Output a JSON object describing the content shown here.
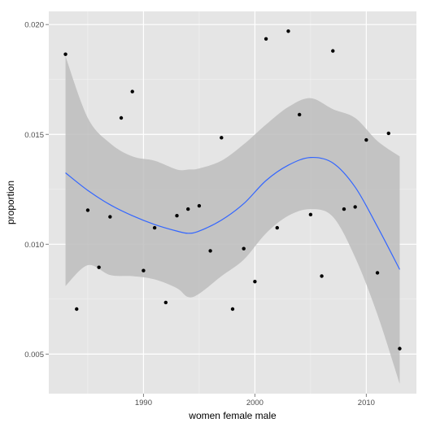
{
  "chart_data": {
    "type": "scatter",
    "xlabel": "women female male",
    "ylabel": "proportion",
    "xlim": [
      1981.5,
      2014.5
    ],
    "ylim": [
      0.0032,
      0.0206
    ],
    "x_ticks": [
      1990,
      2000,
      2010
    ],
    "x_tick_labels": [
      "1990",
      "2000",
      "2010"
    ],
    "y_ticks": [
      0.005,
      0.01,
      0.015,
      0.02
    ],
    "y_tick_labels": [
      "0.005",
      "0.010",
      "0.015",
      "0.020"
    ],
    "grid": true,
    "legend": "none",
    "points": [
      {
        "x": 1983,
        "y": 0.01865
      },
      {
        "x": 1984,
        "y": 0.00705
      },
      {
        "x": 1985,
        "y": 0.01155
      },
      {
        "x": 1986,
        "y": 0.00895
      },
      {
        "x": 1987,
        "y": 0.01125
      },
      {
        "x": 1988,
        "y": 0.01575
      },
      {
        "x": 1989,
        "y": 0.01695
      },
      {
        "x": 1990,
        "y": 0.0088
      },
      {
        "x": 1991,
        "y": 0.01075
      },
      {
        "x": 1992,
        "y": 0.00735
      },
      {
        "x": 1993,
        "y": 0.0113
      },
      {
        "x": 1994,
        "y": 0.0116
      },
      {
        "x": 1995,
        "y": 0.01175
      },
      {
        "x": 1996,
        "y": 0.0097
      },
      {
        "x": 1997,
        "y": 0.01485
      },
      {
        "x": 1998,
        "y": 0.00705
      },
      {
        "x": 1999,
        "y": 0.0098
      },
      {
        "x": 2000,
        "y": 0.0083
      },
      {
        "x": 2001,
        "y": 0.01935
      },
      {
        "x": 2002,
        "y": 0.01075
      },
      {
        "x": 2003,
        "y": 0.0197
      },
      {
        "x": 2004,
        "y": 0.0159
      },
      {
        "x": 2005,
        "y": 0.01135
      },
      {
        "x": 2006,
        "y": 0.00855
      },
      {
        "x": 2007,
        "y": 0.0188
      },
      {
        "x": 2008,
        "y": 0.0116
      },
      {
        "x": 2009,
        "y": 0.0117
      },
      {
        "x": 2010,
        "y": 0.01475
      },
      {
        "x": 2011,
        "y": 0.0087
      },
      {
        "x": 2012,
        "y": 0.01505
      },
      {
        "x": 2013,
        "y": 0.00525
      }
    ],
    "smooth": {
      "x": [
        1983,
        1985,
        1987,
        1989,
        1991,
        1993,
        1994,
        1995,
        1997,
        1999,
        2001,
        2003,
        2005,
        2007,
        2009,
        2011,
        2013
      ],
      "y": [
        0.01325,
        0.01245,
        0.0118,
        0.0113,
        0.0109,
        0.0106,
        0.0105,
        0.0106,
        0.0111,
        0.01185,
        0.0129,
        0.0136,
        0.01395,
        0.0137,
        0.0126,
        0.0108,
        0.00885
      ],
      "lower": [
        0.0081,
        0.00905,
        0.0086,
        0.00855,
        0.0084,
        0.008,
        0.0076,
        0.00775,
        0.00855,
        0.0093,
        0.0105,
        0.0113,
        0.0116,
        0.01125,
        0.0094,
        0.0068,
        0.00365
      ],
      "upper": [
        0.01855,
        0.01575,
        0.0146,
        0.014,
        0.0138,
        0.0134,
        0.0134,
        0.01345,
        0.0138,
        0.01455,
        0.01545,
        0.01625,
        0.01665,
        0.01615,
        0.01575,
        0.0147,
        0.014
      ]
    },
    "colors": {
      "panel_background": "#e5e5e5",
      "grid_major": "#ffffff",
      "grid_minor": "#f2f2f2",
      "ribbon": "#bdbdbd",
      "smooth_line": "#3366ff",
      "point": "#000000"
    }
  }
}
